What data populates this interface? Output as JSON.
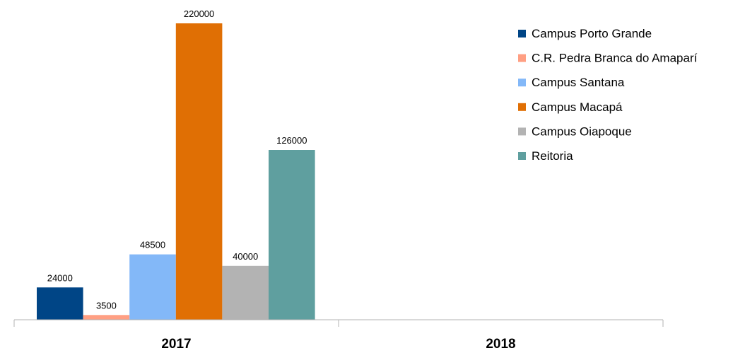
{
  "chart_data": {
    "type": "bar",
    "categories": [
      "2017",
      "2018"
    ],
    "series": [
      {
        "name": "Campus Porto Grande",
        "color": "#004586",
        "values": [
          24000,
          null
        ]
      },
      {
        "name": "C.R. Pedra Branca do Amaparí",
        "color": "#ff9f83",
        "values": [
          3500,
          null
        ]
      },
      {
        "name": "Campus Santana",
        "color": "#83b8f8",
        "values": [
          48500,
          null
        ]
      },
      {
        "name": "Campus Macapá",
        "color": "#e06f04",
        "values": [
          220000,
          null
        ]
      },
      {
        "name": "Campus Oiapoque",
        "color": "#b3b3b3",
        "values": [
          40000,
          null
        ]
      },
      {
        "name": "Reitoria",
        "color": "#5f9f9f",
        "values": [
          126000,
          null
        ]
      }
    ],
    "data_labels": [
      "24000",
      "3500",
      "48500",
      "220000",
      "40000",
      "126000"
    ],
    "legend": "top-right",
    "grid": false,
    "ylim": [
      0,
      220000
    ]
  }
}
